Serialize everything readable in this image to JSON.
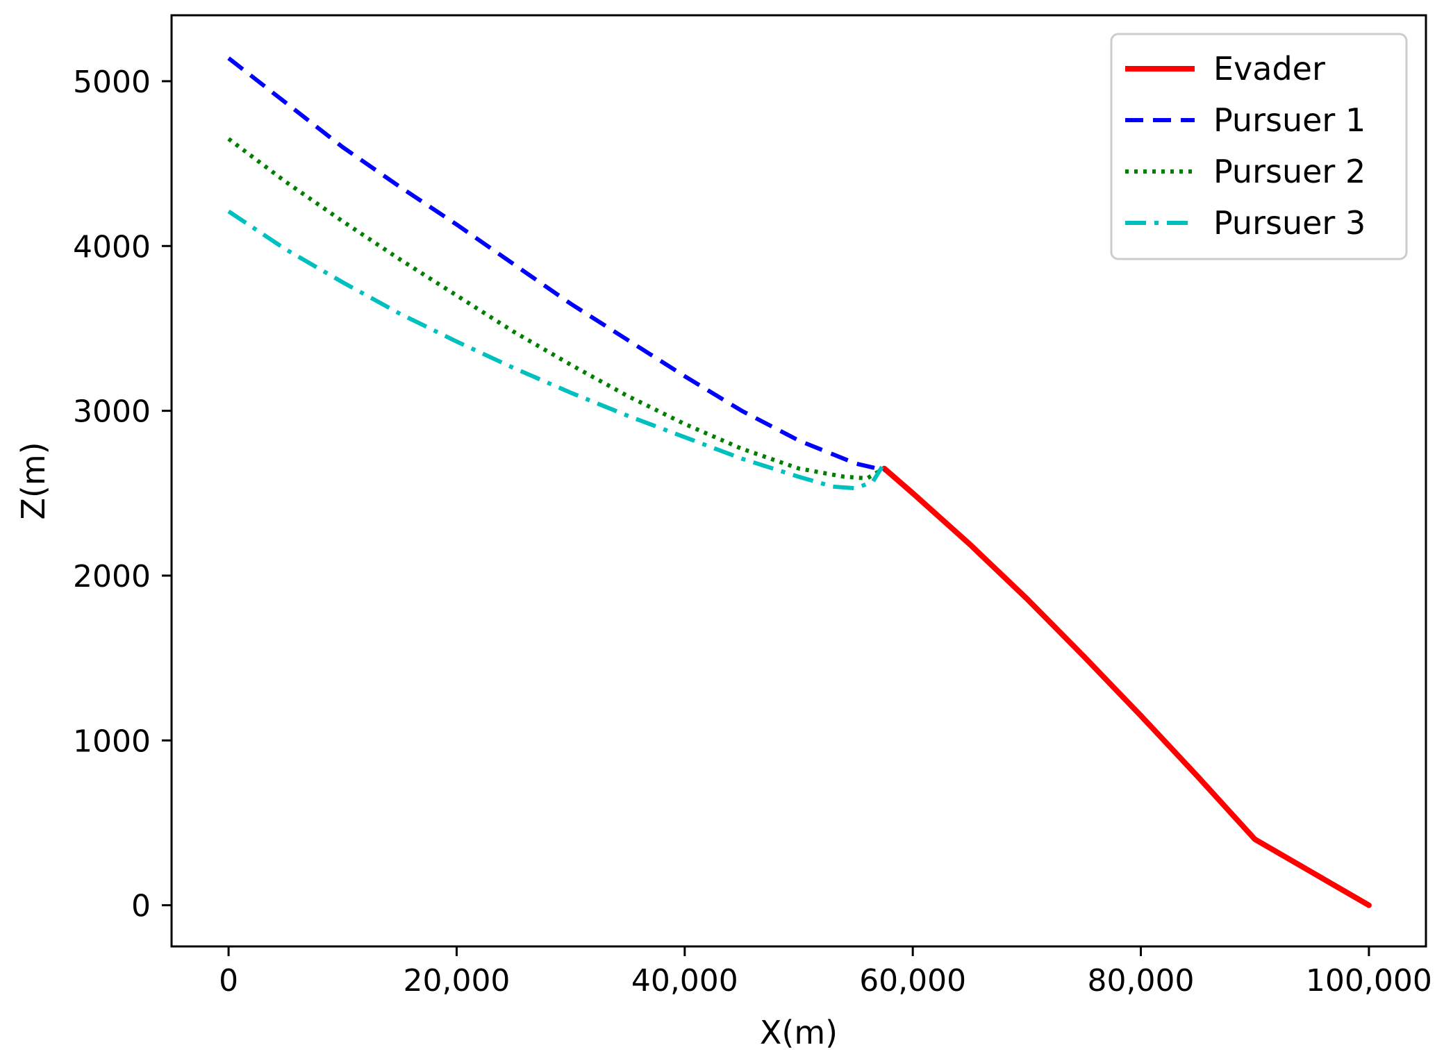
{
  "chart_data": {
    "type": "line",
    "title": "",
    "xlabel": "X(m)",
    "ylabel": "Z(m)",
    "xlim": [
      -5000,
      105000
    ],
    "ylim": [
      -250,
      5400
    ],
    "xticks": [
      0,
      20000,
      40000,
      60000,
      80000,
      100000
    ],
    "xtick_labels": [
      "0",
      "20,000",
      "40,000",
      "60,000",
      "80,000",
      "100,000"
    ],
    "yticks": [
      0,
      1000,
      2000,
      3000,
      4000,
      5000
    ],
    "ytick_labels": [
      "0",
      "1000",
      "2000",
      "3000",
      "4000",
      "5000"
    ],
    "grid": false,
    "legend_position": "top-right",
    "series": [
      {
        "name": "Evader",
        "color": "#ff0000",
        "style": "solid",
        "x": [
          57500,
          60000,
          65000,
          70000,
          75000,
          80000,
          85000,
          90000,
          95000,
          100000
        ],
        "y": [
          2650,
          2500,
          2190,
          1860,
          1510,
          1150,
          780,
          400,
          200,
          0
        ]
      },
      {
        "name": "Pursuer 1",
        "color": "#0000ff",
        "style": "dashed",
        "x": [
          0,
          5000,
          10000,
          15000,
          20000,
          25000,
          30000,
          35000,
          40000,
          45000,
          50000,
          55000,
          57500
        ],
        "y": [
          5140,
          4870,
          4600,
          4360,
          4130,
          3890,
          3650,
          3430,
          3210,
          3000,
          2820,
          2680,
          2640
        ]
      },
      {
        "name": "Pursuer 2",
        "color": "#008000",
        "style": "dotted",
        "x": [
          0,
          5000,
          10000,
          15000,
          20000,
          25000,
          30000,
          35000,
          40000,
          45000,
          50000,
          54000,
          56000,
          57200
        ],
        "y": [
          4650,
          4390,
          4150,
          3920,
          3700,
          3480,
          3280,
          3090,
          2920,
          2770,
          2650,
          2600,
          2590,
          2640
        ]
      },
      {
        "name": "Pursuer 3",
        "color": "#00bfbf",
        "style": "dashdot",
        "x": [
          0,
          5000,
          10000,
          15000,
          20000,
          25000,
          30000,
          35000,
          40000,
          45000,
          50000,
          53000,
          55000,
          56500,
          57300
        ],
        "y": [
          4210,
          3980,
          3780,
          3590,
          3420,
          3260,
          3110,
          2970,
          2840,
          2710,
          2600,
          2540,
          2530,
          2570,
          2660
        ]
      }
    ]
  }
}
